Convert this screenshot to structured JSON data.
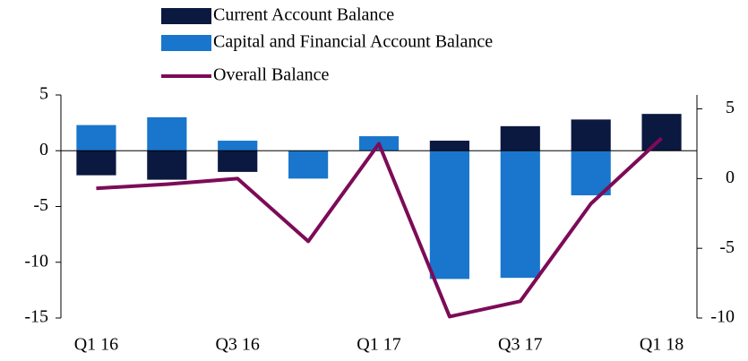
{
  "chart_data": {
    "type": "bar_line",
    "categories": [
      "Q1 16",
      null,
      "Q3 16",
      null,
      "Q1 17",
      null,
      "Q3 17",
      null,
      "Q1 18"
    ],
    "series": [
      {
        "name": "Current Account Balance",
        "color": "#0b1840",
        "type": "bar",
        "values": [
          -2.2,
          -2.6,
          -1.9,
          0,
          0,
          0.9,
          2.2,
          2.8,
          3.3
        ]
      },
      {
        "name": "Capital and Financial Account Balance",
        "color": "#1976cc",
        "type": "bar",
        "values": [
          2.3,
          3.0,
          0.9,
          -2.5,
          1.3,
          -11.5,
          -11.4,
          -4.0,
          0
        ]
      },
      {
        "name": "Overall Balance",
        "color": "#7d0b57",
        "type": "line",
        "axis": "y2",
        "values": [
          -0.7,
          -0.4,
          0,
          -4.5,
          2.5,
          -9.9,
          -8.8,
          -1.8,
          2.9
        ]
      }
    ],
    "ylim": [
      -15,
      5
    ],
    "yticks": [
      5,
      0,
      -5,
      -10,
      -15
    ],
    "y2lim": [
      -10,
      6
    ],
    "y2ticks": [
      5,
      0,
      -5,
      -10
    ]
  }
}
